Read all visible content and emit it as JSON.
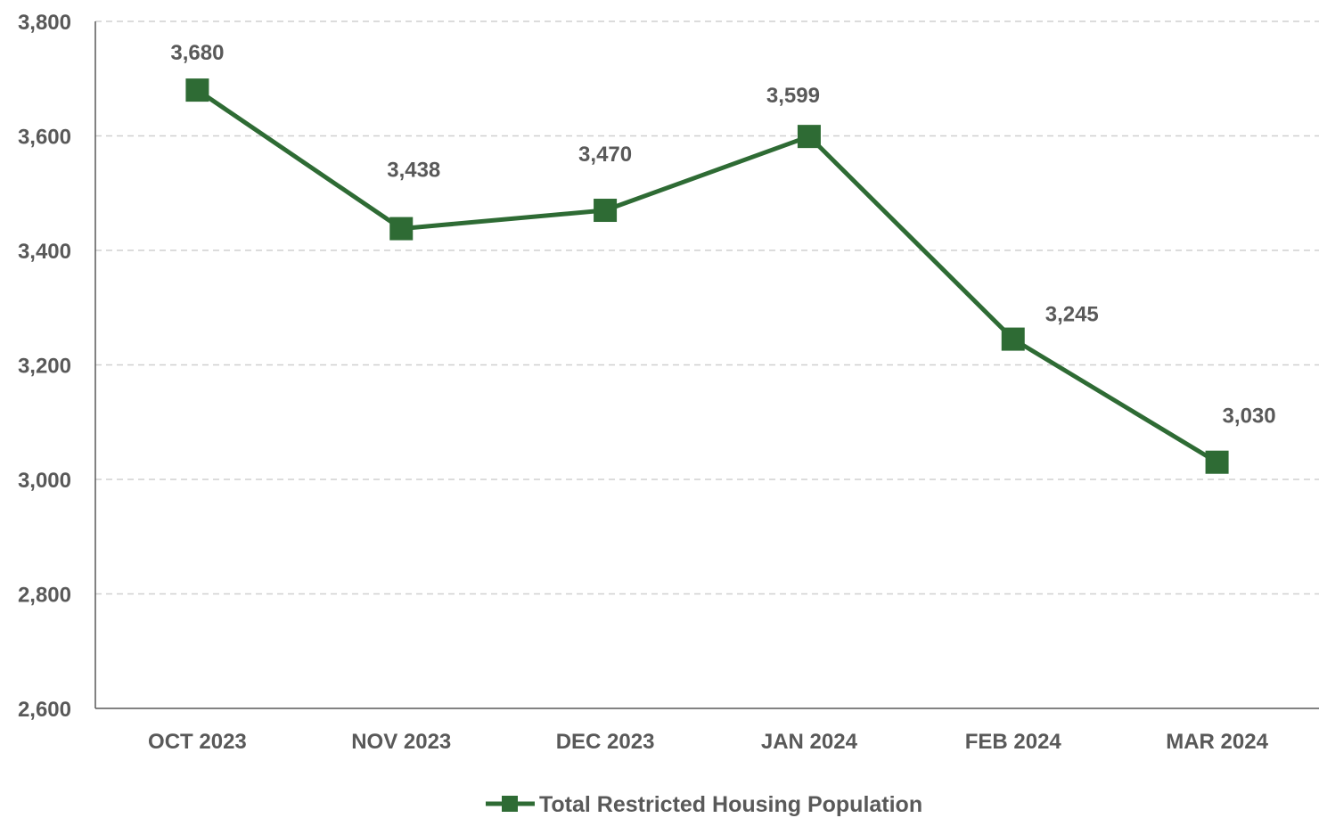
{
  "chart_data": {
    "type": "line",
    "categories": [
      "OCT 2023",
      "NOV 2023",
      "DEC 2023",
      "JAN 2024",
      "FEB 2024",
      "MAR 2024"
    ],
    "series": [
      {
        "name": "Total Restricted Housing Population",
        "values": [
          3680,
          3438,
          3470,
          3599,
          3245,
          3030
        ],
        "data_labels": [
          "3,680",
          "3,438",
          "3,470",
          "3,599",
          "3,245",
          "3,030"
        ],
        "color": "#2e6b34",
        "marker": "square"
      }
    ],
    "ylim": [
      2600,
      3800
    ],
    "yticks": [
      2600,
      2800,
      3000,
      3200,
      3400,
      3600,
      3800
    ],
    "ytick_labels": [
      "2,600",
      "2,800",
      "3,000",
      "3,200",
      "3,400",
      "3,600",
      "3,800"
    ],
    "grid": "horizontal dashed",
    "legend": "bottom",
    "title": "",
    "xlabel": "",
    "ylabel": ""
  }
}
